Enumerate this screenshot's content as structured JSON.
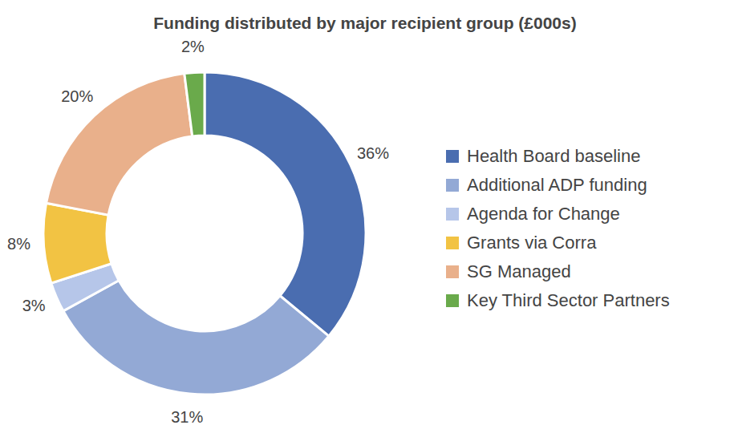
{
  "chart_data": {
    "type": "pie",
    "title": "Funding distributed by major recipient group (£000s)",
    "categories": [
      "Health Board baseline",
      "Additional ADP funding",
      "Agenda for Change",
      "Grants via Corra",
      "SG Managed",
      "Key Third Sector Partners"
    ],
    "values": [
      36,
      31,
      3,
      8,
      20,
      2
    ],
    "value_labels": [
      "36%",
      "31%",
      "3%",
      "8%",
      "20%",
      "2%"
    ],
    "colors": [
      "#4a6db0",
      "#93a9d5",
      "#b6c6e9",
      "#f2c343",
      "#e9b08b",
      "#6aaa4b"
    ],
    "data_labels": true,
    "legend": "right"
  }
}
